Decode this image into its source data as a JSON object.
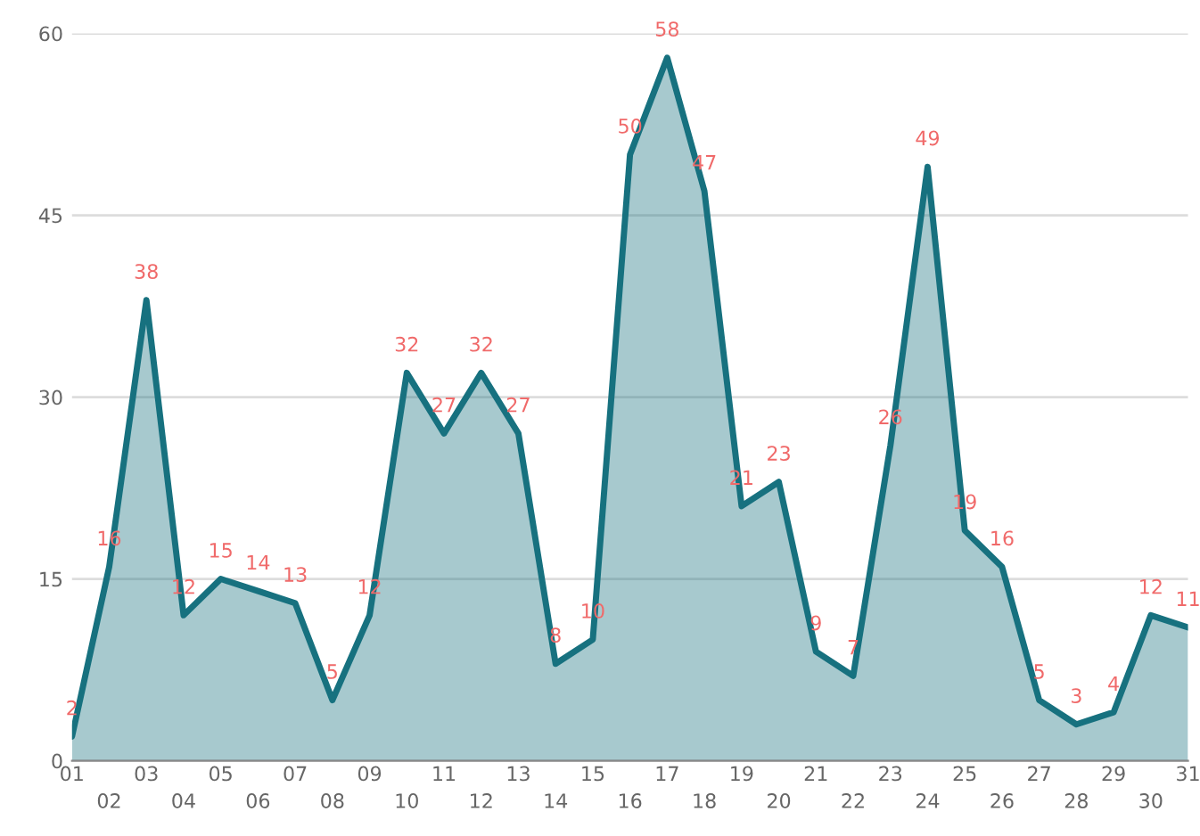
{
  "chart_data": {
    "type": "area",
    "categories": [
      "01",
      "02",
      "03",
      "04",
      "05",
      "06",
      "07",
      "08",
      "09",
      "10",
      "11",
      "12",
      "13",
      "14",
      "15",
      "16",
      "17",
      "18",
      "19",
      "20",
      "21",
      "22",
      "23",
      "24",
      "25",
      "26",
      "27",
      "28",
      "29",
      "30",
      "31"
    ],
    "series": [
      {
        "color": "#17717f",
        "values": [
          2,
          16,
          38,
          12,
          15,
          14,
          13,
          5,
          12,
          32,
          27,
          32,
          27,
          8,
          10,
          50,
          58,
          47,
          21,
          23,
          9,
          7,
          26,
          49,
          19,
          16,
          5,
          3,
          4,
          12,
          11
        ]
      }
    ],
    "ylim": [
      0,
      60
    ],
    "yticks": [
      0,
      15,
      30,
      45,
      60
    ],
    "grid": "y",
    "data_labels": true
  }
}
